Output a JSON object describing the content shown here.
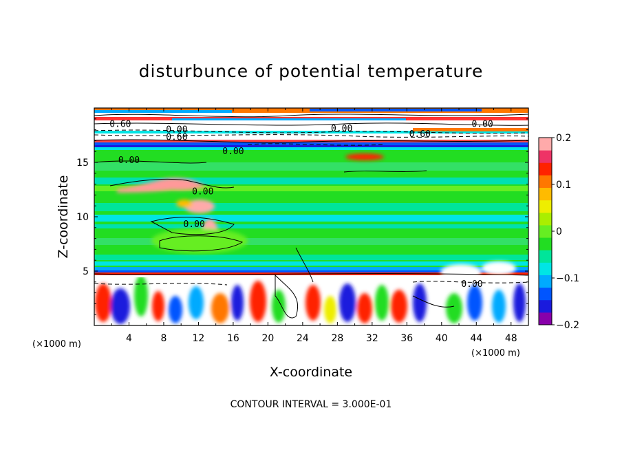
{
  "chart_data": {
    "type": "heatmap",
    "title": "disturbunce of potential temperature",
    "xlabel": "X-coordinate",
    "ylabel": "Z-coordinate",
    "x_unit": "(×1000 m)",
    "y_unit": "(×1000 m)",
    "xlim": [
      0,
      50
    ],
    "ylim": [
      0,
      20
    ],
    "x_ticks": [
      4,
      8,
      12,
      16,
      20,
      24,
      28,
      32,
      36,
      40,
      44,
      48
    ],
    "y_ticks": [
      5,
      10,
      15
    ],
    "colorbar": {
      "min": -0.2,
      "max": 0.2,
      "tick_values": [
        0.2,
        0.1,
        0,
        -0.1,
        -0.2
      ],
      "tick_labels": [
        "0.2",
        "0.1",
        "0",
        "−0.1",
        "−0.2"
      ],
      "colors": [
        "#8800aa",
        "#1a1add",
        "#0055ff",
        "#00aaff",
        "#00e5e5",
        "#00e59a",
        "#22dd22",
        "#66ee22",
        "#aaee00",
        "#eeee00",
        "#ffbb00",
        "#ff7700",
        "#ff2200",
        "#ee3366",
        "#ffaaaa"
      ]
    },
    "contour_labels": [
      {
        "text": "0.60",
        "x": 3,
        "z": 18.5
      },
      {
        "text": "0.00",
        "x": 9.5,
        "z": 18.0
      },
      {
        "text": "0.60",
        "x": 9.5,
        "z": 17.3
      },
      {
        "text": "0.00",
        "x": 16,
        "z": 16.0
      },
      {
        "text": "0.00",
        "x": 28.5,
        "z": 18.1
      },
      {
        "text": "0.60",
        "x": 37.5,
        "z": 17.6
      },
      {
        "text": "0.00",
        "x": 44.7,
        "z": 18.5
      },
      {
        "text": "0.00",
        "x": 4,
        "z": 15.2
      },
      {
        "text": "0.00",
        "x": 12.5,
        "z": 12.3
      },
      {
        "text": "0.00",
        "x": 11.5,
        "z": 9.3
      },
      {
        "text": "0.00",
        "x": 43.5,
        "z": 3.8
      }
    ],
    "contour_interval": "CONTOUR INTERVAL = 3.000E-01"
  }
}
